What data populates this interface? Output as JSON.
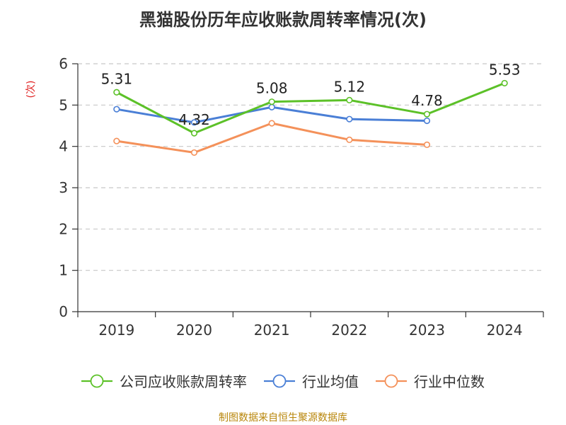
{
  "chart_data": {
    "type": "line",
    "title": "黑猫股份历年应收账款周转率情况(次)",
    "ylabel": "(次)",
    "xlabel": "",
    "categories": [
      "2019",
      "2020",
      "2021",
      "2022",
      "2023",
      "2024"
    ],
    "ylim": [
      0,
      6
    ],
    "yticks": [
      0,
      1,
      2,
      3,
      4,
      5,
      6
    ],
    "grid": true,
    "legend_position": "bottom",
    "series": [
      {
        "name": "公司应收账款周转率",
        "color": "#5cc128",
        "values": [
          5.31,
          4.32,
          5.08,
          5.12,
          4.78,
          5.53
        ],
        "labels": [
          "5.31",
          "4.32",
          "5.08",
          "5.12",
          "4.78",
          "5.53"
        ]
      },
      {
        "name": "行业均值",
        "color": "#4a7fd6",
        "values": [
          4.9,
          4.58,
          4.95,
          4.66,
          4.62,
          null
        ]
      },
      {
        "name": "行业中位数",
        "color": "#f4915a",
        "values": [
          4.13,
          3.85,
          4.56,
          4.16,
          4.04,
          null
        ]
      }
    ]
  },
  "source_text": "制图数据来自恒生聚源数据库"
}
